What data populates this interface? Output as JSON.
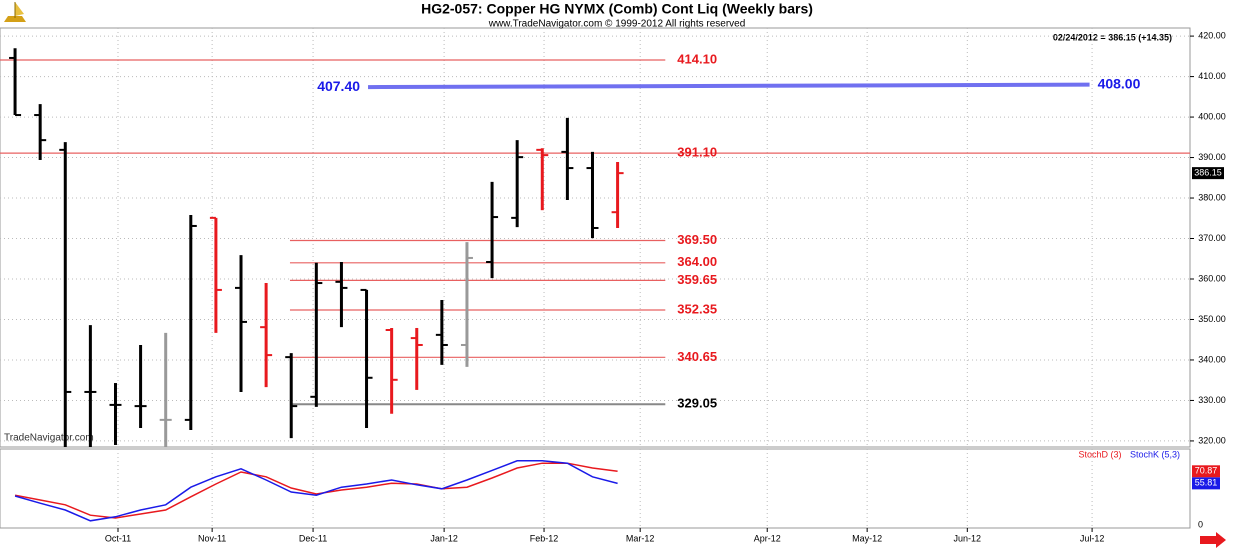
{
  "chart_data": [
    {
      "type": "ohlc",
      "title": "HG2-057:  Copper HG NYMX (Comb) Cont Liq  (Weekly bars)",
      "subtitle": "www.TradeNavigator.com © 1999-2012 All rights reserved",
      "info": "02/24/2012 = 386.15 (+14.35)",
      "watermark": "TradeNavigator.com",
      "x": [
        1,
        2,
        3,
        4,
        5,
        6,
        7,
        8,
        9,
        10,
        11,
        12,
        13,
        14,
        15,
        16,
        17,
        18,
        19,
        20,
        21,
        22,
        23,
        24,
        25
      ],
      "open": [
        414.6,
        400.5,
        391.9,
        332.1,
        328.9,
        328.6,
        325.2,
        325.2,
        375.1,
        357.8,
        348.1,
        340.7,
        330.9,
        359.3,
        357.3,
        347.4,
        345.4,
        346.2,
        343.7,
        364.2,
        375.1,
        391.9,
        391.4,
        387.4,
        376.5
      ],
      "high": [
        417.0,
        403.2,
        393.8,
        348.6,
        334.3,
        343.7,
        346.7,
        375.8,
        375.1,
        365.9,
        359.0,
        341.7,
        364.0,
        364.2,
        357.3,
        347.9,
        347.9,
        354.8,
        369.1,
        384.0,
        394.3,
        392.3,
        399.8,
        391.4,
        388.9
      ],
      "low": [
        400.5,
        389.4,
        316.0,
        316.0,
        319.0,
        323.2,
        316.0,
        322.7,
        346.7,
        332.1,
        333.3,
        320.7,
        328.4,
        348.1,
        323.2,
        326.7,
        332.6,
        338.8,
        338.3,
        360.2,
        372.8,
        377.0,
        379.5,
        370.1,
        372.6
      ],
      "close": [
        400.5,
        394.3,
        332.1,
        332.1,
        328.9,
        328.6,
        325.2,
        373.1,
        357.3,
        349.4,
        341.2,
        328.6,
        359.0,
        357.8,
        335.6,
        335.1,
        343.7,
        343.7,
        365.2,
        375.3,
        390.1,
        390.6,
        387.4,
        372.6,
        386.15
      ],
      "colors": [
        "#000",
        "#000",
        "#000",
        "#000",
        "#000",
        "#000",
        "#999",
        "#000",
        "#e8191e",
        "#000",
        "#e8191e",
        "#000",
        "#000",
        "#000",
        "#000",
        "#e8191e",
        "#e8191e",
        "#000",
        "#999",
        "#000",
        "#000",
        "#e8191e",
        "#000",
        "#000",
        "#e8191e"
      ],
      "xlim": [
        0.4,
        47.8
      ],
      "xticks": [
        {
          "value": 5.1,
          "label": "Oct-11"
        },
        {
          "value": 8.85,
          "label": "Nov-11"
        },
        {
          "value": 12.87,
          "label": "Dec-11"
        },
        {
          "value": 18.09,
          "label": "Jan-12"
        },
        {
          "value": 22.07,
          "label": "Feb-12"
        },
        {
          "value": 25.9,
          "label": "Mar-12"
        },
        {
          "value": 30.96,
          "label": "Apr-12"
        },
        {
          "value": 34.94,
          "label": "May-12"
        },
        {
          "value": 38.93,
          "label": "Jun-12"
        },
        {
          "value": 43.9,
          "label": "Jul-12"
        }
      ],
      "ylim": [
        318.5,
        422
      ],
      "yticks": [
        {
          "value": 320,
          "label": "320.00"
        },
        {
          "value": 330,
          "label": "330.00"
        },
        {
          "value": 340,
          "label": "340.00"
        },
        {
          "value": 350,
          "label": "350.00"
        },
        {
          "value": 360,
          "label": "360.00"
        },
        {
          "value": 370,
          "label": "370.00"
        },
        {
          "value": 380,
          "label": "380.00"
        },
        {
          "value": 390,
          "label": "390.00"
        },
        {
          "value": 400,
          "label": "400.00"
        },
        {
          "value": 410,
          "label": "410.00"
        },
        {
          "value": 420,
          "label": "420.00"
        }
      ],
      "grid": true,
      "levels": [
        {
          "value": 414.1,
          "label": "414.10",
          "color": "#e86060",
          "label_color": "#e8191e",
          "x_range": [
            0.4,
            26.9
          ]
        },
        {
          "value": 391.1,
          "label": "391.10",
          "color": "#e86060",
          "label_color": "#e8191e",
          "x_range": [
            0.4,
            47.8
          ]
        },
        {
          "value": 369.5,
          "label": "369.50",
          "color": "#e86060",
          "label_color": "#e8191e",
          "x_range": [
            11.95,
            26.9
          ]
        },
        {
          "value": 364.0,
          "label": "364.00",
          "color": "#e86060",
          "label_color": "#e8191e",
          "x_range": [
            11.95,
            26.9
          ]
        },
        {
          "value": 359.65,
          "label": "359.65",
          "color": "#e86060",
          "label_color": "#e8191e",
          "x_range": [
            11.95,
            26.9
          ]
        },
        {
          "value": 352.35,
          "label": "352.35",
          "color": "#e86060",
          "label_color": "#e8191e",
          "x_range": [
            11.95,
            26.9
          ]
        },
        {
          "value": 340.65,
          "label": "340.65",
          "color": "#e86060",
          "label_color": "#e8191e",
          "x_range": [
            11.95,
            26.9
          ]
        },
        {
          "value": 329.05,
          "label": "329.05",
          "color": "#888888",
          "label_color": "#000000",
          "x_range": [
            11.95,
            26.9
          ]
        }
      ],
      "trendline": {
        "color": "#7070f0",
        "label_color": "#1a1ae8",
        "start": {
          "x": 15.06,
          "value": 407.4,
          "label": "407.40"
        },
        "end": {
          "x": 43.8,
          "value": 408.0,
          "label": "408.00"
        }
      }
    },
    {
      "type": "line",
      "x": [
        1,
        2,
        3,
        4,
        5,
        6,
        7,
        8,
        9,
        10,
        11,
        12,
        13,
        14,
        15,
        16,
        17,
        18,
        19,
        20,
        21,
        22,
        23,
        24,
        25
      ],
      "xlim": [
        0.4,
        47.8
      ],
      "ylim": [
        0,
        100
      ],
      "yticks": [
        0
      ],
      "series": [
        {
          "name": "StochD (3)",
          "color": "#e8191e",
          "values": [
            41,
            35,
            29,
            16,
            12.5,
            17.5,
            22.5,
            39,
            55,
            70,
            64,
            50,
            42.5,
            47.5,
            51,
            56,
            55,
            49,
            51,
            62.5,
            75,
            81,
            81,
            75,
            70.87
          ]
        },
        {
          "name": "StochK (5,3)",
          "color": "#1a1ae8",
          "values": [
            40,
            31,
            22.5,
            9,
            14,
            22.5,
            29,
            51,
            64,
            74,
            60,
            45,
            41,
            51,
            55,
            60,
            54,
            49,
            60,
            72,
            84,
            84,
            81,
            64,
            55.81
          ]
        }
      ]
    }
  ]
}
